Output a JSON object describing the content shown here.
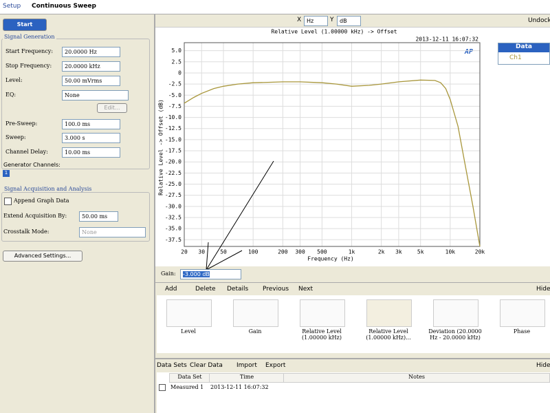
{
  "header": {
    "tab": "Setup",
    "title": "Continuous Sweep"
  },
  "panel": {
    "start": "Start",
    "generation": {
      "title": "Signal Generation",
      "fields": [
        {
          "label": "Start Frequency:",
          "value": "20.0000 Hz"
        },
        {
          "label": "Stop Frequency:",
          "value": "20.0000 kHz"
        },
        {
          "label": "Level:",
          "value": "50.00 mVrms"
        },
        {
          "label": "EQ:",
          "value": "None"
        },
        {
          "label": "Pre-Sweep:",
          "value": "100.0 ms"
        },
        {
          "label": "Sweep:",
          "value": "3.000 s"
        },
        {
          "label": "Channel Delay:",
          "value": "10.00 ms"
        }
      ]
    },
    "edit": "Edit...",
    "generator_channels": "Generator Channels:",
    "channel": "1",
    "acquisition": {
      "title": "Signal Acquisition and Analysis",
      "append": "Append Graph Data",
      "fields": [
        {
          "label": "Extend Acquisition By:",
          "value": "50.00 ms"
        },
        {
          "label": "Crosstalk Mode:",
          "value": "None"
        }
      ]
    },
    "advanced": "Advanced Settings..."
  },
  "toolbar": {
    "x": "X",
    "x_unit": "Hz",
    "y": "Y",
    "y_unit": "dB",
    "undock": "Undock"
  },
  "chart_data": {
    "type": "line",
    "title": "Relative Level (1.00000 kHz) -> Offset",
    "subtitle": "2013-12-11 16:07:32",
    "logo": "AP",
    "xlabel": "Frequency (Hz)",
    "ylabel": "Relative Level -> Offset (dB)",
    "x": [
      20,
      25,
      30,
      40,
      50,
      70,
      100,
      150,
      200,
      300,
      500,
      700,
      1000,
      1500,
      2000,
      3000,
      5000,
      7000,
      8000,
      9000,
      10000,
      12000,
      14000,
      17000,
      20000
    ],
    "series": [
      {
        "name": "Ch1",
        "color": "#a8963a",
        "values": [
          -6.8,
          -5.5,
          -4.6,
          -3.5,
          -3.0,
          -2.5,
          -2.2,
          -2.1,
          -2.0,
          -2.0,
          -2.2,
          -2.5,
          -3.0,
          -2.8,
          -2.5,
          -2.0,
          -1.6,
          -1.7,
          -2.2,
          -3.5,
          -6,
          -12,
          -20,
          -30,
          -39
        ]
      }
    ],
    "xscale": "log",
    "xlim": [
      20,
      20000
    ],
    "ylim": [
      -39,
      6.8
    ],
    "grid": true,
    "xticks": [
      20,
      30,
      50,
      100,
      200,
      300,
      500,
      {
        "value": 1000,
        "label": "1k"
      },
      {
        "value": 2000,
        "label": "2k"
      },
      {
        "value": 3000,
        "label": "3k"
      },
      {
        "value": 5000,
        "label": "5k"
      },
      {
        "value": 10000,
        "label": "10k"
      },
      {
        "value": 20000,
        "label": "20k"
      }
    ],
    "yticks": [
      {
        "value": 5,
        "label": "5.0"
      },
      2.5,
      0,
      -2.5,
      {
        "value": -5,
        "label": "-5.0"
      },
      -7.5,
      {
        "value": -10,
        "label": "-10.0"
      },
      -12.5,
      {
        "value": -15,
        "label": "-15.0"
      },
      -17.5,
      {
        "value": -20,
        "label": "-20.0"
      },
      -22.5,
      {
        "value": -25,
        "label": "-25.0"
      },
      -27.5,
      {
        "value": -30,
        "label": "-30.0"
      },
      -32.5,
      {
        "value": -35,
        "label": "-35.0"
      },
      -37.5
    ]
  },
  "legend_panel": {
    "title": "Data"
  },
  "gain": {
    "label": "Gain:",
    "value": "-3.000 dB"
  },
  "graphs_bar": {
    "buttons": [
      "Add",
      "Delete",
      "Details",
      "Previous",
      "Next"
    ],
    "hide": "Hide",
    "thumbnails": [
      "Level",
      "Gain",
      "Relative Level (1.00000 kHz)",
      "Relative Level (1.00000 kHz)...",
      "Deviation (20.0000 Hz - 20.0000 kHz)",
      "Phase"
    ]
  },
  "data_sets": {
    "buttons": [
      "Data Sets",
      "Clear Data",
      "Import",
      "Export"
    ],
    "hide": "Hide",
    "headers": [
      "Data Set",
      "Time",
      "Notes"
    ],
    "rows": [
      [
        "Measured 1",
        "2013-12-11 16:07:32"
      ]
    ]
  }
}
